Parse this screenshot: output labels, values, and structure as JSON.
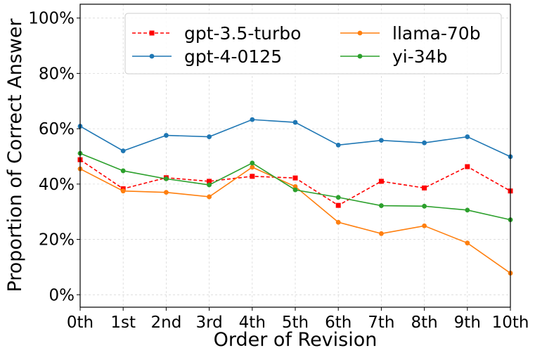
{
  "chart_data": {
    "type": "line",
    "title": "",
    "xlabel": "Order of Revision",
    "ylabel": "Proportion of Correct Answer",
    "categories": [
      "0th",
      "1st",
      "2nd",
      "3rd",
      "4th",
      "5th",
      "6th",
      "7th",
      "8th",
      "9th",
      "10th"
    ],
    "yticks": [
      0,
      20,
      40,
      60,
      80,
      100
    ],
    "ytick_labels": [
      "0%",
      "20%",
      "40%",
      "60%",
      "80%",
      "100%"
    ],
    "ylim": [
      -4.5,
      105
    ],
    "grid": true,
    "legend_position": "top-right",
    "series": [
      {
        "name": "gpt-3.5-turbo",
        "color": "#ff0000",
        "marker": "square",
        "dashed": true,
        "values": [
          48.8,
          38.3,
          42.3,
          41.0,
          42.8,
          42.2,
          32.3,
          41.0,
          38.6,
          46.3,
          37.5
        ]
      },
      {
        "name": "gpt-4-0125",
        "color": "#1f77b4",
        "marker": "circle",
        "dashed": false,
        "values": [
          60.9,
          52.0,
          57.6,
          57.1,
          63.3,
          62.3,
          54.1,
          55.8,
          54.9,
          57.1,
          49.9
        ]
      },
      {
        "name": "llama-70b",
        "color": "#ff7f0e",
        "marker": "circle",
        "dashed": false,
        "values": [
          45.5,
          37.5,
          37.0,
          35.4,
          46.1,
          39.1,
          26.2,
          22.1,
          24.9,
          18.7,
          7.8
        ]
      },
      {
        "name": "yi-34b",
        "color": "#2ca02c",
        "marker": "circle",
        "dashed": false,
        "values": [
          51.1,
          44.8,
          41.9,
          39.7,
          47.6,
          37.9,
          35.2,
          32.2,
          32.0,
          30.6,
          27.1
        ]
      }
    ]
  }
}
